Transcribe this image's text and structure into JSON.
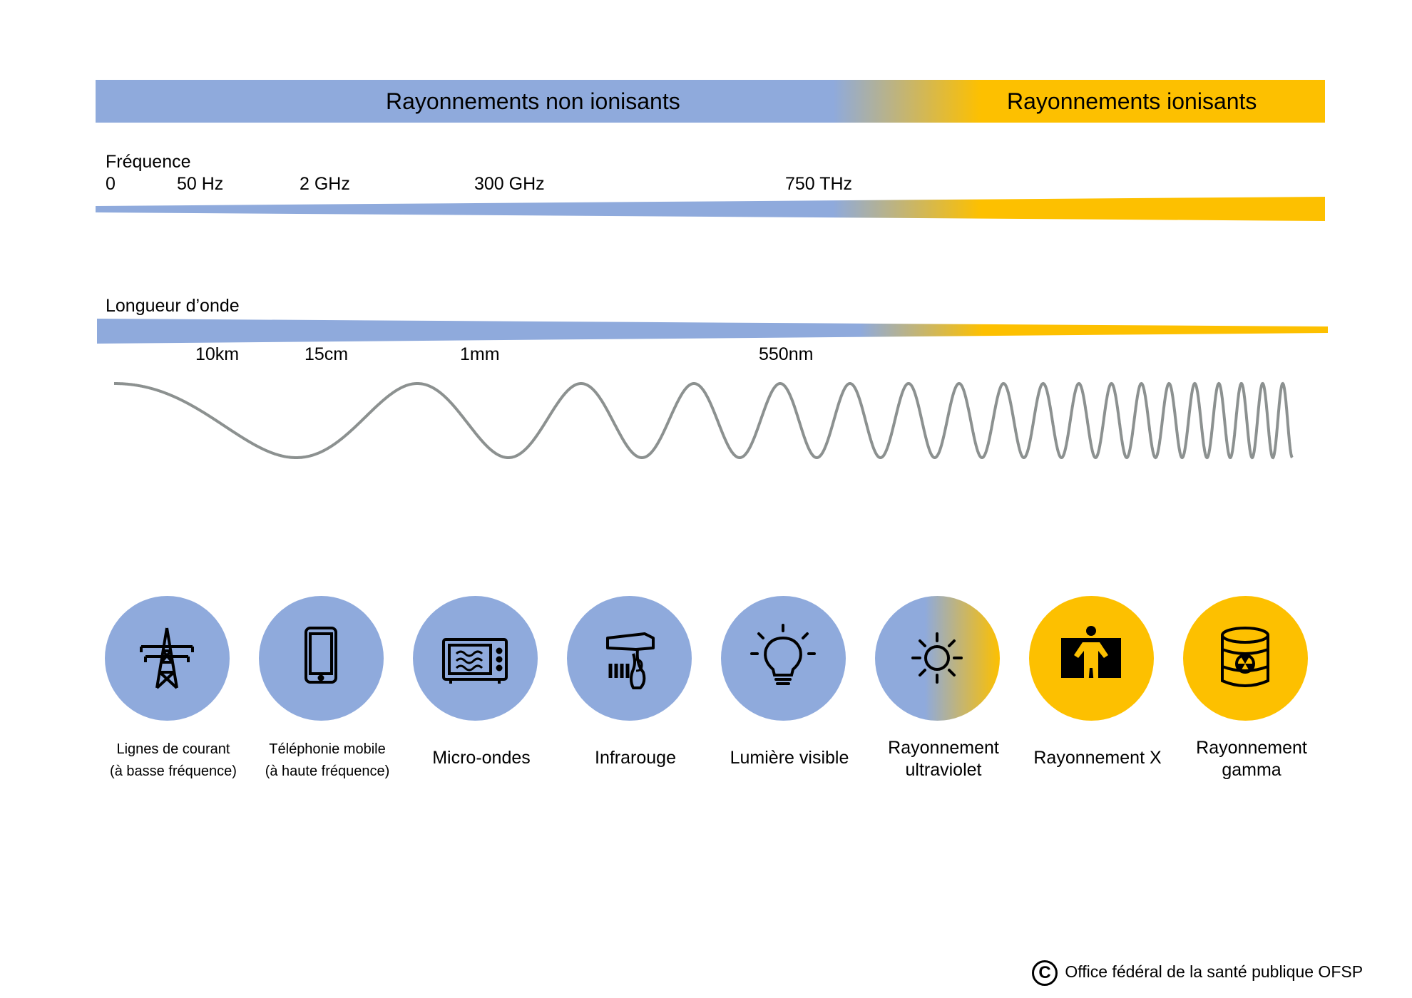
{
  "header": {
    "non_ionizing": "Rayonnements non ionisants",
    "ionizing": "Rayonnements ionisants"
  },
  "frequency": {
    "label": "Fréquence",
    "ticks": [
      "0",
      "50 Hz",
      "2 GHz",
      "300 GHz",
      "750 THz"
    ]
  },
  "wavelength": {
    "label": "Longueur d’onde",
    "ticks": [
      "10km",
      "15cm",
      "1mm",
      "550nm"
    ]
  },
  "sources": [
    {
      "line1": "Lignes de courant",
      "line2": "(à basse fréquence)",
      "icon": "power-line-icon",
      "color": "#8faadc"
    },
    {
      "line1": "Téléphonie mobile",
      "line2": "(à haute fréquence)",
      "icon": "mobile-phone-icon",
      "color": "#8faadc"
    },
    {
      "line1": "Micro-ondes",
      "line2": "",
      "icon": "microwave-icon",
      "color": "#8faadc"
    },
    {
      "line1": "Infrarouge",
      "line2": "",
      "icon": "infrared-scanner-icon",
      "color": "#8faadc"
    },
    {
      "line1": "Lumière visible",
      "line2": "",
      "icon": "light-bulb-icon",
      "color": "#8faadc"
    },
    {
      "line1": "Rayonnement",
      "line2": "ultraviolet",
      "icon": "sun-icon",
      "color": "gradient"
    },
    {
      "line1": "Rayonnement X",
      "line2": "",
      "icon": "x-ray-person-icon",
      "color": "#fdc000"
    },
    {
      "line1": "Rayonnement",
      "line2": "gamma",
      "icon": "radioactive-barrel-icon",
      "color": "#fdc000"
    }
  ],
  "footer": {
    "copyright_symbol": "C",
    "credit": "Office fédéral de la santé publique OFSP"
  },
  "colors": {
    "non_ionizing": "#8faadc",
    "ionizing": "#fdc000",
    "wave": "#8c9190"
  }
}
